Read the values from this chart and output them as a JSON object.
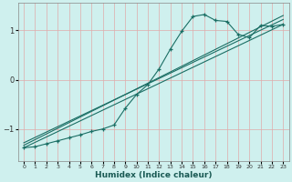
{
  "xlabel": "Humidex (Indice chaleur)",
  "bg_color": "#cff0ee",
  "grid_color": "#e0aaaa",
  "line_color": "#1a6e64",
  "xlim": [
    -0.5,
    23.5
  ],
  "ylim": [
    -1.65,
    1.55
  ],
  "yticks": [
    -1,
    0,
    1
  ],
  "xticks": [
    0,
    1,
    2,
    3,
    4,
    5,
    6,
    7,
    8,
    9,
    10,
    11,
    12,
    13,
    14,
    15,
    16,
    17,
    18,
    19,
    20,
    21,
    22,
    23
  ],
  "curve_x": [
    0,
    1,
    2,
    3,
    4,
    5,
    6,
    7,
    8,
    9,
    10,
    11,
    12,
    13,
    14,
    15,
    16,
    17,
    18,
    19,
    20,
    21,
    22,
    23
  ],
  "curve_y": [
    -1.38,
    -1.36,
    -1.3,
    -1.24,
    -1.18,
    -1.12,
    -1.05,
    -1.0,
    -0.92,
    -0.58,
    -0.3,
    -0.1,
    0.22,
    0.62,
    0.98,
    1.28,
    1.32,
    1.2,
    1.18,
    0.92,
    0.85,
    1.1,
    1.08,
    1.12
  ],
  "line1_x": [
    0,
    23
  ],
  "line1_y": [
    -1.38,
    1.12
  ],
  "line2_x": [
    0,
    23
  ],
  "line2_y": [
    -1.28,
    1.22
  ],
  "line3_x": [
    0,
    23
  ],
  "line3_y": [
    -1.33,
    1.3
  ]
}
